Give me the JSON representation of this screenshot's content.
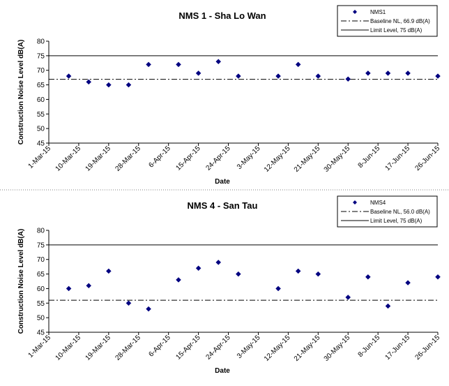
{
  "chart_data": [
    {
      "type": "scatter",
      "title": "NMS 1 - Sha Lo Wan",
      "xlabel": "Date",
      "ylabel": "Construction Noise Level  dB(A)",
      "ylim": [
        45,
        80
      ],
      "yticks": [
        45,
        50,
        55,
        60,
        65,
        70,
        75,
        80
      ],
      "xlim": [
        "1-Mar-15",
        "26-Jun-15"
      ],
      "xticks": [
        "1-Mar-15",
        "10-Mar-15",
        "19-Mar-15",
        "28-Mar-15",
        "6-Apr-15",
        "15-Apr-15",
        "24-Apr-15",
        "3-May-15",
        "12-May-15",
        "21-May-15",
        "30-May-15",
        "8-Jun-15",
        "17-Jun-15",
        "26-Jun-15"
      ],
      "grid": false,
      "legend_position": "top-right",
      "series": [
        {
          "name": "NMS1",
          "marker": "diamond",
          "color": "#000080",
          "points": [
            [
              "7-Mar-15",
              68
            ],
            [
              "13-Mar-15",
              66
            ],
            [
              "19-Mar-15",
              65
            ],
            [
              "25-Mar-15",
              65
            ],
            [
              "31-Mar-15",
              72
            ],
            [
              "9-Apr-15",
              72
            ],
            [
              "15-Apr-15",
              69
            ],
            [
              "21-Apr-15",
              73
            ],
            [
              "27-Apr-15",
              68
            ],
            [
              "9-May-15",
              68
            ],
            [
              "15-May-15",
              72
            ],
            [
              "21-May-15",
              68
            ],
            [
              "30-May-15",
              67
            ],
            [
              "5-Jun-15",
              69
            ],
            [
              "11-Jun-15",
              69
            ],
            [
              "17-Jun-15",
              69
            ],
            [
              "26-Jun-15",
              68
            ]
          ]
        }
      ],
      "reference_lines": [
        {
          "name": "Baseline NL, 66.9 dB(A)",
          "value": 66.9,
          "style": "dash-dot"
        },
        {
          "name": "Limit Level, 75 dB(A)",
          "value": 75,
          "style": "solid"
        }
      ]
    },
    {
      "type": "scatter",
      "title": "NMS 4 - San Tau",
      "xlabel": "Date",
      "ylabel": "Construction Noise Level  dB(A)",
      "ylim": [
        45,
        80
      ],
      "yticks": [
        45,
        50,
        55,
        60,
        65,
        70,
        75,
        80
      ],
      "xlim": [
        "1-Mar-15",
        "26-Jun-15"
      ],
      "xticks": [
        "1-Mar-15",
        "10-Mar-15",
        "19-Mar-15",
        "28-Mar-15",
        "6-Apr-15",
        "15-Apr-15",
        "24-Apr-15",
        "3-May-15",
        "12-May-15",
        "21-May-15",
        "30-May-15",
        "8-Jun-15",
        "17-Jun-15",
        "26-Jun-15"
      ],
      "grid": false,
      "legend_position": "top-right",
      "series": [
        {
          "name": "NMS4",
          "marker": "diamond",
          "color": "#000080",
          "points": [
            [
              "7-Mar-15",
              60
            ],
            [
              "13-Mar-15",
              61
            ],
            [
              "19-Mar-15",
              66
            ],
            [
              "25-Mar-15",
              55
            ],
            [
              "31-Mar-15",
              53
            ],
            [
              "9-Apr-15",
              63
            ],
            [
              "15-Apr-15",
              67
            ],
            [
              "21-Apr-15",
              69
            ],
            [
              "27-Apr-15",
              65
            ],
            [
              "9-May-15",
              60
            ],
            [
              "15-May-15",
              66
            ],
            [
              "21-May-15",
              65
            ],
            [
              "30-May-15",
              57
            ],
            [
              "5-Jun-15",
              64
            ],
            [
              "11-Jun-15",
              54
            ],
            [
              "17-Jun-15",
              62
            ],
            [
              "26-Jun-15",
              64
            ]
          ]
        }
      ],
      "reference_lines": [
        {
          "name": "Baseline NL, 56.0 dB(A)",
          "value": 56.0,
          "style": "dash-dot"
        },
        {
          "name": "Limit Level, 75 dB(A)",
          "value": 75,
          "style": "solid"
        }
      ]
    }
  ]
}
